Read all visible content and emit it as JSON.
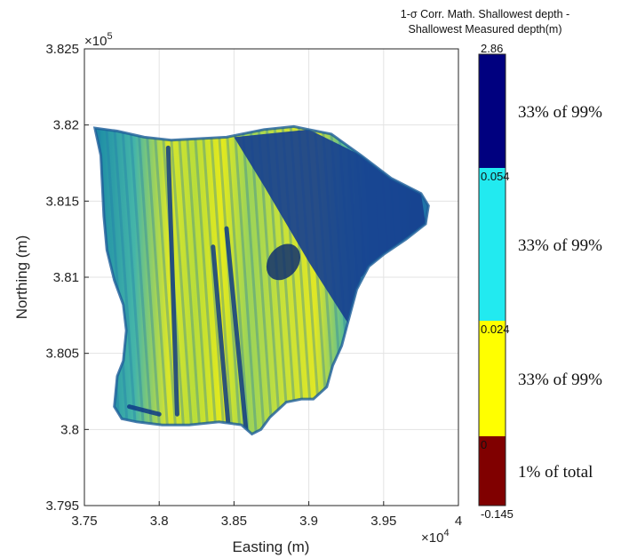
{
  "chart_data": {
    "type": "heatmap",
    "title_lines": [
      "1-σ Corr. Math. Shallowest depth -",
      "Shallowest Measured depth(m)"
    ],
    "xlabel": "Easting (m)",
    "ylabel": "Northing (m)",
    "x_multiplier": "×10",
    "x_exponent": "4",
    "y_multiplier": "×10",
    "y_exponent": "5",
    "xlim": [
      3.75,
      4.0
    ],
    "ylim": [
      3.795,
      3.825
    ],
    "xticks": [
      3.75,
      3.8,
      3.85,
      3.9,
      3.95,
      4.0
    ],
    "xtick_labels": [
      "3.75",
      "3.8",
      "3.85",
      "3.9",
      "3.95",
      "4"
    ],
    "yticks": [
      3.795,
      3.8,
      3.805,
      3.81,
      3.815,
      3.82,
      3.825
    ],
    "ytick_labels": [
      "3.795",
      "3.8",
      "3.805",
      "3.81",
      "3.815",
      "3.82",
      "3.825"
    ],
    "grid": true,
    "colorbar": {
      "position": "right",
      "bins": [
        {
          "min": 0.054,
          "max": 2.86,
          "color": "#00007f",
          "label": "33% of 99%"
        },
        {
          "min": 0.024,
          "max": 0.054,
          "color": "#22eaf0",
          "label": "33% of 99%"
        },
        {
          "min": 0,
          "max": 0.024,
          "color": "#ffff00",
          "label": "33% of 99%"
        },
        {
          "min": -0.145,
          "max": 0,
          "color": "#800000",
          "label": "1% of total"
        }
      ],
      "tick_labels": [
        "2.86",
        "0.054",
        "0.024",
        "0",
        "-0.145"
      ]
    },
    "survey_outline": [
      [
        3.757,
        3.8198
      ],
      [
        3.772,
        3.8196
      ],
      [
        3.79,
        3.8192
      ],
      [
        3.808,
        3.819
      ],
      [
        3.845,
        3.8192
      ],
      [
        3.87,
        3.8197
      ],
      [
        3.89,
        3.8199
      ],
      [
        3.9,
        3.8197
      ],
      [
        3.915,
        3.8194
      ],
      [
        3.935,
        3.818
      ],
      [
        3.955,
        3.8165
      ],
      [
        3.975,
        3.8155
      ],
      [
        3.98,
        3.8147
      ],
      [
        3.978,
        3.8135
      ],
      [
        3.965,
        3.8125
      ],
      [
        3.95,
        3.8115
      ],
      [
        3.94,
        3.8107
      ],
      [
        3.932,
        3.8092
      ],
      [
        3.926,
        3.807
      ],
      [
        3.922,
        3.8055
      ],
      [
        3.916,
        3.8042
      ],
      [
        3.912,
        3.8028
      ],
      [
        3.903,
        3.802
      ],
      [
        3.895,
        3.802
      ],
      [
        3.885,
        3.8018
      ],
      [
        3.874,
        3.8008
      ],
      [
        3.868,
        3.8
      ],
      [
        3.862,
        3.7997
      ],
      [
        3.855,
        3.8003
      ],
      [
        3.84,
        3.8005
      ],
      [
        3.82,
        3.8003
      ],
      [
        3.802,
        3.8003
      ],
      [
        3.785,
        3.8005
      ],
      [
        3.775,
        3.8007
      ],
      [
        3.77,
        3.8015
      ],
      [
        3.772,
        3.8035
      ],
      [
        3.776,
        3.8045
      ],
      [
        3.778,
        3.8065
      ],
      [
        3.776,
        3.8082
      ],
      [
        3.77,
        3.8098
      ],
      [
        3.765,
        3.8118
      ],
      [
        3.763,
        3.814
      ],
      [
        3.762,
        3.816
      ],
      [
        3.761,
        3.818
      ],
      [
        3.757,
        3.8198
      ]
    ],
    "dark_region": [
      [
        3.85,
        3.8192
      ],
      [
        3.9,
        3.8197
      ],
      [
        3.935,
        3.818
      ],
      [
        3.975,
        3.8155
      ],
      [
        3.978,
        3.8135
      ],
      [
        3.95,
        3.8115
      ],
      [
        3.935,
        3.81
      ],
      [
        3.926,
        3.807
      ],
      [
        3.9,
        3.811
      ],
      [
        3.87,
        3.816
      ],
      [
        3.85,
        3.8192
      ]
    ],
    "dark_streaks": [
      [
        [
          3.845,
          3.8132
        ],
        [
          3.858,
          3.8
        ]
      ],
      [
        [
          3.836,
          3.812
        ],
        [
          3.846,
          3.8005
        ]
      ],
      [
        [
          3.806,
          3.8185
        ],
        [
          3.812,
          3.801
        ]
      ],
      [
        [
          3.78,
          3.8015
        ],
        [
          3.8,
          3.801
        ]
      ]
    ],
    "dark_blob": {
      "cx": 3.883,
      "cy": 3.811,
      "rx": 0.01,
      "ry": 0.0013,
      "angle": 38
    }
  }
}
